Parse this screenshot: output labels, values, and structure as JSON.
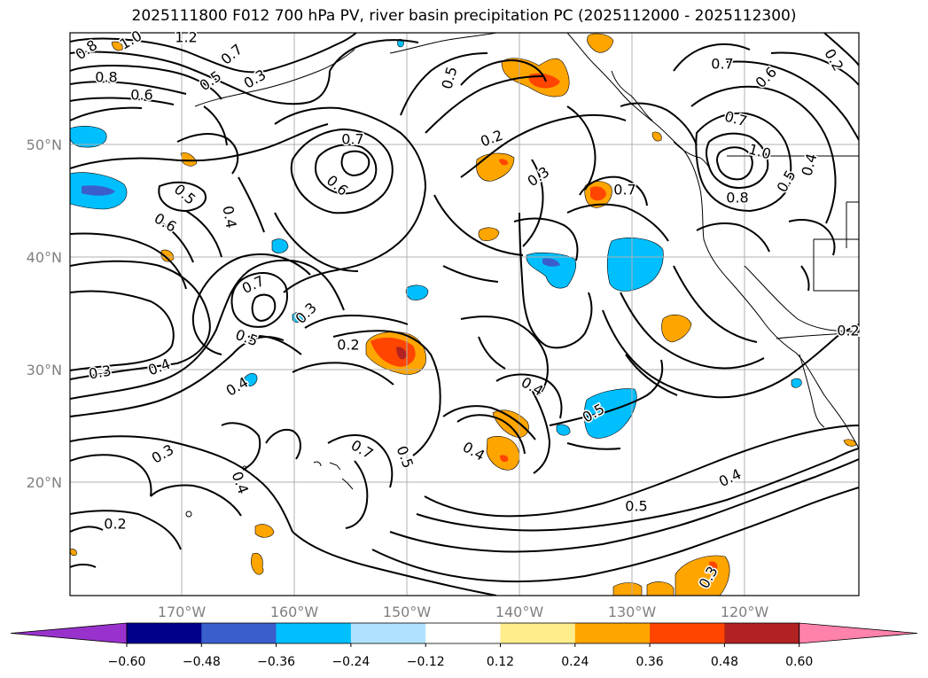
{
  "title": "2025111800 F012 700 hPa PV, river basin precipitation PC (2025112000 - 2025112300)",
  "lat_labels": [
    "50°N",
    "40°N",
    "30°N",
    "20°N"
  ],
  "lon_labels": [
    "170°W",
    "160°W",
    "150°W",
    "140°W",
    "130°W",
    "120°W"
  ],
  "contour_labels": [
    "0.8",
    "1.0",
    "1.2",
    "0.7",
    "0.8",
    "0.6",
    "0.5",
    "0.3",
    "0.5",
    "0.7",
    "0.6",
    "0.2",
    "0.3",
    "0.7",
    "0.7",
    "0.6",
    "0.7",
    "1.0",
    "0.8",
    "0.5",
    "0.4",
    "0.5",
    "0.4",
    "0.6",
    "0.7",
    "0.5",
    "0.3",
    "0.2",
    "0.3",
    "0.4",
    "0.4",
    "0.4",
    "0.5",
    "0.7",
    "0.5",
    "0.4",
    "0.4",
    "0.3",
    "0.5",
    "0.4",
    "0.2",
    "0.3",
    "0.2",
    "0.2"
  ],
  "colorbar": {
    "ticks": [
      "−0.60",
      "−0.48",
      "−0.36",
      "−0.24",
      "−0.12",
      "0.12",
      "0.24",
      "0.36",
      "0.48",
      "0.60"
    ],
    "colors": [
      "#9932cc",
      "#00008b",
      "#3a5fcd",
      "#00bfff",
      "#b0e2ff",
      "#ffffff",
      "#ffec8b",
      "#ffa500",
      "#ff4500",
      "#b22222",
      "#ff82ab"
    ]
  }
}
